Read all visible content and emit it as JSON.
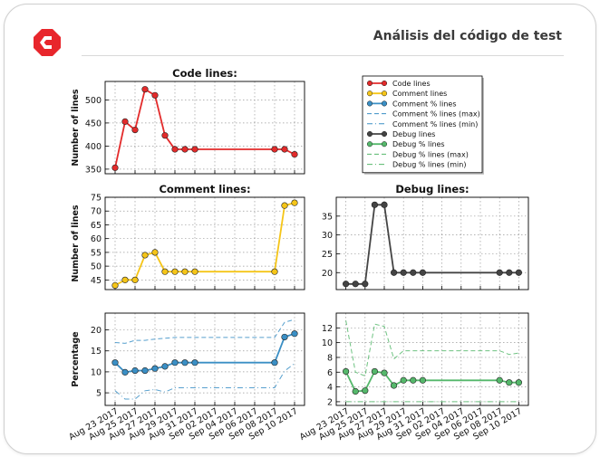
{
  "header": {
    "title": "Análisis del código de test"
  },
  "colors": {
    "code": "#e32b2b",
    "comment": "#f5c518",
    "comment_pct": "#3a8fc5",
    "debug": "#444444",
    "debug_pct": "#55b86b",
    "logo": "#e8262c"
  },
  "legend": {
    "entries": [
      {
        "label": "Code lines",
        "color": "#e32b2b",
        "style": "marker"
      },
      {
        "label": "Comment lines",
        "color": "#f5c518",
        "style": "marker"
      },
      {
        "label": "Comment % lines",
        "color": "#3a8fc5",
        "style": "marker"
      },
      {
        "label": "Comment % lines (max)",
        "color": "#3a8fc5",
        "style": "dash"
      },
      {
        "label": "Comment % lines (min)",
        "color": "#3a8fc5",
        "style": "dash"
      },
      {
        "label": "Debug lines",
        "color": "#444444",
        "style": "marker"
      },
      {
        "label": "Debug % lines",
        "color": "#55b86b",
        "style": "marker"
      },
      {
        "label": "Debug % lines (max)",
        "color": "#55b86b",
        "style": "dash"
      },
      {
        "label": "Debug % lines (min)",
        "color": "#55b86b",
        "style": "dash"
      }
    ]
  },
  "chart_data": [
    {
      "type": "line",
      "title": "Code lines:",
      "ylabel": "Number of lines",
      "xlim": [
        "2017-08-22",
        "2017-09-11"
      ],
      "ylim": [
        340,
        540
      ],
      "yticks": [
        350,
        400,
        450,
        500
      ],
      "grid": true,
      "x": [
        "2017-08-23",
        "2017-08-24",
        "2017-08-25",
        "2017-08-26",
        "2017-08-27",
        "2017-08-28",
        "2017-08-29",
        "2017-08-30",
        "2017-08-31",
        "2017-09-08",
        "2017-09-09",
        "2017-09-10"
      ],
      "series": [
        {
          "name": "Code lines",
          "color": "#e32b2b",
          "style": "marker",
          "values": [
            353,
            453,
            435,
            523,
            510,
            423,
            393,
            393,
            393,
            393,
            393,
            382
          ]
        }
      ]
    },
    {
      "type": "line",
      "title": "Comment lines:",
      "ylabel": "Number of lines",
      "xlim": [
        "2017-08-22",
        "2017-09-11"
      ],
      "ylim": [
        41.5,
        75
      ],
      "yticks": [
        45,
        50,
        55,
        60,
        65,
        70,
        75
      ],
      "grid": true,
      "x": [
        "2017-08-23",
        "2017-08-24",
        "2017-08-25",
        "2017-08-26",
        "2017-08-27",
        "2017-08-28",
        "2017-08-29",
        "2017-08-30",
        "2017-08-31",
        "2017-09-08",
        "2017-09-09",
        "2017-09-10"
      ],
      "series": [
        {
          "name": "Comment lines",
          "color": "#f5c518",
          "style": "marker",
          "values": [
            43,
            45,
            45,
            54,
            55,
            48,
            48,
            48,
            48,
            48,
            72,
            73
          ]
        }
      ]
    },
    {
      "type": "line",
      "title": "Debug lines:",
      "ylabel": "",
      "xlim": [
        "2017-08-22",
        "2017-09-11"
      ],
      "ylim": [
        15.5,
        40
      ],
      "yticks": [
        20,
        25,
        30,
        35
      ],
      "grid": true,
      "x": [
        "2017-08-23",
        "2017-08-24",
        "2017-08-25",
        "2017-08-26",
        "2017-08-27",
        "2017-08-28",
        "2017-08-29",
        "2017-08-30",
        "2017-08-31",
        "2017-09-08",
        "2017-09-09",
        "2017-09-10"
      ],
      "series": [
        {
          "name": "Debug lines",
          "color": "#444444",
          "style": "marker",
          "values": [
            17,
            17,
            17,
            38,
            38,
            20,
            20,
            20,
            20,
            20,
            20,
            20
          ]
        }
      ]
    },
    {
      "type": "line",
      "title": "",
      "ylabel": "Percentage",
      "xlim": [
        "2017-08-22",
        "2017-09-11"
      ],
      "ylim": [
        2,
        24
      ],
      "yticks": [
        5,
        10,
        15,
        20
      ],
      "grid": true,
      "xticklabels": [
        "Aug 23 2017",
        "Aug 25 2017",
        "Aug 27 2017",
        "Aug 29 2017",
        "Aug 31 2017",
        "Sep 02 2017",
        "Sep 04 2017",
        "Sep 06 2017",
        "Sep 08 2017",
        "Sep 10 2017"
      ],
      "x": [
        "2017-08-23",
        "2017-08-24",
        "2017-08-25",
        "2017-08-26",
        "2017-08-27",
        "2017-08-28",
        "2017-08-29",
        "2017-08-30",
        "2017-08-31",
        "2017-09-08",
        "2017-09-09",
        "2017-09-10"
      ],
      "series": [
        {
          "name": "Comment % lines",
          "color": "#3a8fc5",
          "style": "marker",
          "values": [
            12.2,
            9.9,
            10.3,
            10.3,
            10.8,
            11.3,
            12.2,
            12.2,
            12.2,
            12.2,
            18.3,
            19.1
          ]
        },
        {
          "name": "Comment % lines (max)",
          "color": "#3a8fc5",
          "style": "dash",
          "values": [
            17.0,
            16.8,
            17.5,
            17.5,
            17.8,
            18.0,
            18.2,
            18.2,
            18.2,
            18.2,
            21.8,
            22.5
          ]
        },
        {
          "name": "Comment % lines (min)",
          "color": "#3a8fc5",
          "style": "dash",
          "values": [
            5.5,
            3.5,
            3.5,
            5.5,
            5.8,
            5.2,
            6.2,
            6.2,
            6.2,
            6.2,
            10.2,
            12.0
          ]
        }
      ]
    },
    {
      "type": "line",
      "title": "",
      "ylabel": "",
      "xlim": [
        "2017-08-22",
        "2017-09-11"
      ],
      "ylim": [
        1.5,
        14
      ],
      "yticks": [
        2,
        4,
        6,
        8,
        10,
        12
      ],
      "grid": true,
      "xticklabels": [
        "Aug 23 2017",
        "Aug 25 2017",
        "Aug 27 2017",
        "Aug 29 2017",
        "Aug 31 2017",
        "Sep 02 2017",
        "Sep 04 2017",
        "Sep 06 2017",
        "Sep 08 2017",
        "Sep 10 2017"
      ],
      "x": [
        "2017-08-23",
        "2017-08-24",
        "2017-08-25",
        "2017-08-26",
        "2017-08-27",
        "2017-08-28",
        "2017-08-29",
        "2017-08-30",
        "2017-08-31",
        "2017-09-08",
        "2017-09-09",
        "2017-09-10"
      ],
      "series": [
        {
          "name": "Debug % lines",
          "color": "#55b86b",
          "style": "marker",
          "values": [
            6.1,
            3.4,
            3.5,
            6.1,
            5.9,
            4.2,
            4.9,
            4.9,
            4.9,
            4.9,
            4.6,
            4.6
          ]
        },
        {
          "name": "Debug % lines (max)",
          "color": "#55b86b",
          "style": "dash",
          "values": [
            13.0,
            6.0,
            5.5,
            12.5,
            12.2,
            7.8,
            8.9,
            8.9,
            8.9,
            8.9,
            8.4,
            8.6
          ]
        },
        {
          "name": "Debug % lines (min)",
          "color": "#55b86b",
          "style": "dash",
          "values": [
            2.0,
            2.0,
            2.0,
            2.0,
            2.0,
            2.0,
            2.0,
            2.0,
            2.0,
            2.0,
            2.0,
            2.0
          ]
        }
      ]
    }
  ]
}
